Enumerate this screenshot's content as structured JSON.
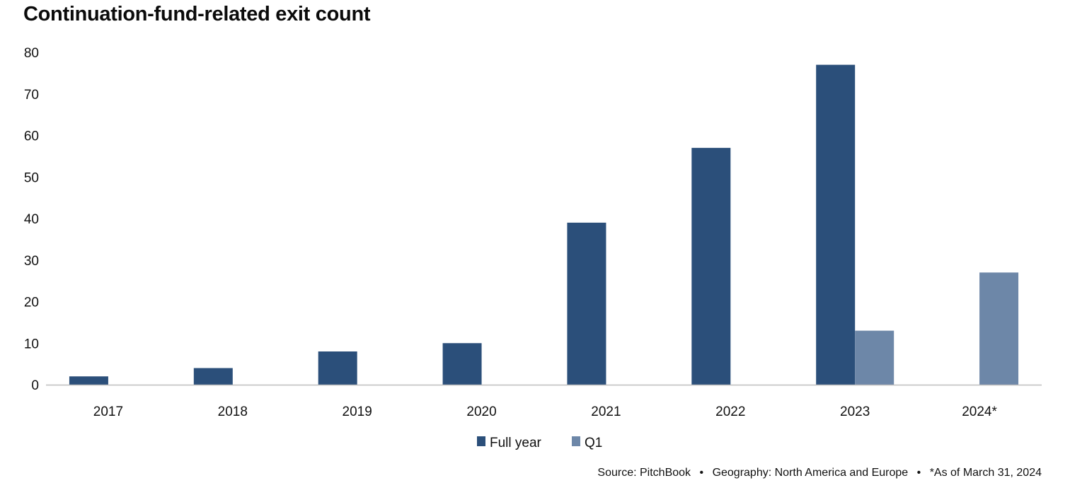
{
  "chart_data": {
    "type": "bar",
    "title": "Continuation-fund-related exit count",
    "categories": [
      "2017",
      "2018",
      "2019",
      "2020",
      "2021",
      "2022",
      "2023",
      "2024*"
    ],
    "series": [
      {
        "name": "Full year",
        "values": [
          2,
          4,
          8,
          10,
          39,
          57,
          77,
          null
        ],
        "color": "#2b4f7a"
      },
      {
        "name": "Q1",
        "values": [
          null,
          null,
          null,
          null,
          null,
          null,
          13,
          27
        ],
        "color": "#6d87a8"
      }
    ],
    "ylim": [
      0,
      80
    ],
    "yticks": [
      0,
      10,
      20,
      30,
      40,
      50,
      60,
      70,
      80
    ],
    "xlabel": "",
    "ylabel": "",
    "grid": false,
    "legend_position": "bottom-center"
  },
  "footer": {
    "source": "Source: PitchBook",
    "geography": "Geography: North America and Europe",
    "as_of": "*As of March 31, 2024",
    "separator": "•"
  }
}
